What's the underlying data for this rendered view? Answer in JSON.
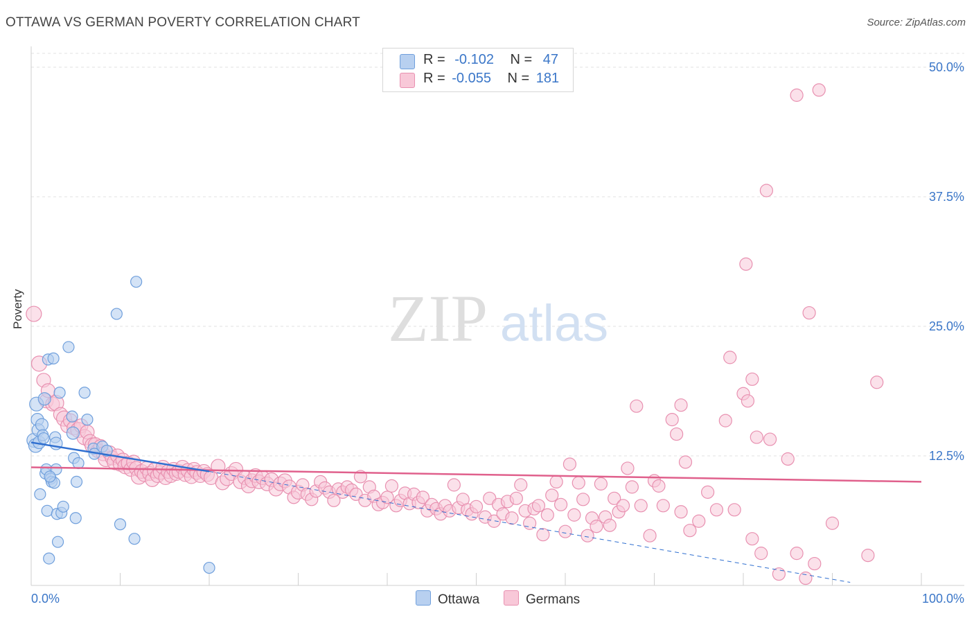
{
  "title": "OTTAWA VS GERMAN POVERTY CORRELATION CHART",
  "source": "Source: ZipAtlas.com",
  "watermark": {
    "zip": "ZIP",
    "atlas": "atlas"
  },
  "legend": {
    "ottawa": {
      "r_label": "R =",
      "r_value": "-0.102",
      "n_label": "N =",
      "n_value": "47"
    },
    "germans": {
      "r_label": "R =",
      "r_value": "-0.055",
      "n_label": "N =",
      "n_value": "181"
    }
  },
  "bottom_legend": {
    "ottawa": "Ottawa",
    "germans": "Germans"
  },
  "colors": {
    "ottawa_fill": "#b8d0f0",
    "ottawa_stroke": "#6f9fdc",
    "ottawa_line": "#2f6fd0",
    "germans_fill": "#f8c8d8",
    "germans_stroke": "#e890b0",
    "germans_line": "#e0608c",
    "axis_label": "#3a76c8",
    "grid": "#e2e2e2"
  },
  "chart_data": {
    "type": "scatter",
    "title": "OTTAWA VS GERMAN POVERTY CORRELATION CHART",
    "xlabel": "",
    "ylabel": "Poverty",
    "xlim": [
      0,
      100
    ],
    "ylim": [
      0,
      52
    ],
    "x_tick_labels": [
      "0.0%",
      "100.0%"
    ],
    "y_ticks": [
      12.5,
      25.0,
      37.5,
      50.0
    ],
    "y_tick_labels": [
      "12.5%",
      "25.0%",
      "37.5%",
      "50.0%"
    ],
    "series": [
      {
        "name": "Ottawa",
        "trend": {
          "x": [
            0,
            20
          ],
          "y": [
            13.8,
            11.0
          ]
        },
        "trend_dashed": {
          "x": [
            20,
            92
          ],
          "y": [
            11.0,
            0.3
          ]
        },
        "points": [
          [
            0.3,
            14.0,
            10
          ],
          [
            0.5,
            13.5,
            10
          ],
          [
            0.6,
            17.5,
            10
          ],
          [
            0.7,
            16.0,
            9
          ],
          [
            0.8,
            15.0,
            9
          ],
          [
            0.9,
            13.8,
            9
          ],
          [
            1.0,
            8.8,
            8
          ],
          [
            1.2,
            15.5,
            9
          ],
          [
            1.3,
            14.5,
            8
          ],
          [
            1.5,
            18.0,
            9
          ],
          [
            1.6,
            10.8,
            8
          ],
          [
            1.7,
            11.2,
            8
          ],
          [
            1.8,
            7.2,
            8
          ],
          [
            1.9,
            21.8,
            8
          ],
          [
            2.0,
            2.6,
            8
          ],
          [
            2.2,
            10.3,
            8
          ],
          [
            2.3,
            10.0,
            8
          ],
          [
            2.5,
            21.9,
            8
          ],
          [
            2.6,
            9.9,
            8
          ],
          [
            2.7,
            14.3,
            8
          ],
          [
            2.8,
            13.7,
            9
          ],
          [
            2.8,
            11.2,
            8
          ],
          [
            2.9,
            6.9,
            8
          ],
          [
            3.0,
            4.2,
            8
          ],
          [
            3.2,
            18.6,
            8
          ],
          [
            3.4,
            7.0,
            8
          ],
          [
            3.6,
            7.6,
            8
          ],
          [
            4.2,
            23.0,
            8
          ],
          [
            4.6,
            16.3,
            8
          ],
          [
            4.7,
            14.7,
            9
          ],
          [
            4.8,
            12.3,
            8
          ],
          [
            5.0,
            6.5,
            8
          ],
          [
            5.1,
            10.0,
            8
          ],
          [
            5.3,
            11.8,
            8
          ],
          [
            6.0,
            18.6,
            8
          ],
          [
            6.3,
            16.0,
            8
          ],
          [
            7.0,
            13.2,
            8
          ],
          [
            7.1,
            12.7,
            8
          ],
          [
            8.0,
            13.4,
            8
          ],
          [
            8.5,
            13.0,
            8
          ],
          [
            9.6,
            26.2,
            8
          ],
          [
            10.0,
            5.9,
            8
          ],
          [
            11.6,
            4.5,
            8
          ],
          [
            11.8,
            29.3,
            8
          ],
          [
            20.0,
            1.7,
            8
          ],
          [
            1.4,
            14.2,
            8
          ],
          [
            2.1,
            10.5,
            8
          ]
        ]
      },
      {
        "name": "Germans",
        "trend": {
          "x": [
            0,
            100
          ],
          "y": [
            11.4,
            10.0
          ]
        },
        "points": [
          [
            0.3,
            26.2,
            11
          ],
          [
            0.9,
            21.4,
            11
          ],
          [
            1.4,
            19.8,
            10
          ],
          [
            1.7,
            17.8,
            10
          ],
          [
            1.9,
            18.8,
            10
          ],
          [
            2.4,
            17.5,
            10
          ],
          [
            2.8,
            17.6,
            11
          ],
          [
            3.3,
            16.5,
            10
          ],
          [
            3.7,
            16.1,
            11
          ],
          [
            4.1,
            15.4,
            10
          ],
          [
            4.4,
            15.9,
            10
          ],
          [
            4.8,
            15.2,
            10
          ],
          [
            5.3,
            15.0,
            11
          ],
          [
            5.6,
            15.4,
            10
          ],
          [
            6.0,
            14.3,
            11
          ],
          [
            6.3,
            14.8,
            10
          ],
          [
            6.6,
            13.9,
            10
          ],
          [
            6.9,
            13.5,
            11
          ],
          [
            7.2,
            13.6,
            10
          ],
          [
            7.5,
            13.0,
            10
          ],
          [
            7.8,
            13.4,
            10
          ],
          [
            8.1,
            12.7,
            10
          ],
          [
            8.4,
            12.2,
            11
          ],
          [
            8.8,
            12.8,
            10
          ],
          [
            9.1,
            12.3,
            10
          ],
          [
            9.4,
            11.9,
            11
          ],
          [
            9.7,
            12.5,
            10
          ],
          [
            10.0,
            11.7,
            10
          ],
          [
            10.3,
            12.1,
            10
          ],
          [
            10.6,
            11.5,
            11
          ],
          [
            10.9,
            11.8,
            10
          ],
          [
            11.2,
            11.2,
            10
          ],
          [
            11.5,
            11.9,
            10
          ],
          [
            11.8,
            11.3,
            10
          ],
          [
            12.1,
            10.5,
            11
          ],
          [
            12.4,
            11.0,
            10
          ],
          [
            12.7,
            10.7,
            10
          ],
          [
            13.0,
            11.3,
            10
          ],
          [
            13.3,
            10.8,
            10
          ],
          [
            13.6,
            10.2,
            10
          ],
          [
            13.9,
            11.1,
            11
          ],
          [
            14.2,
            10.6,
            10
          ],
          [
            14.5,
            10.9,
            10
          ],
          [
            14.8,
            11.4,
            10
          ],
          [
            15.1,
            10.4,
            10
          ],
          [
            15.4,
            11.0,
            10
          ],
          [
            15.7,
            10.6,
            10
          ],
          [
            16.0,
            11.2,
            10
          ],
          [
            16.3,
            10.8,
            10
          ],
          [
            16.6,
            11.0,
            10
          ],
          [
            17.0,
            11.4,
            10
          ],
          [
            17.3,
            10.7,
            10
          ],
          [
            17.6,
            11.1,
            10
          ],
          [
            18.0,
            10.5,
            10
          ],
          [
            18.3,
            11.2,
            10
          ],
          [
            18.6,
            10.9,
            10
          ],
          [
            19.0,
            10.6,
            10
          ],
          [
            19.4,
            11.0,
            10
          ],
          [
            19.8,
            10.7,
            10
          ],
          [
            20.2,
            10.4,
            10
          ],
          [
            21.0,
            11.5,
            10
          ],
          [
            21.5,
            9.9,
            10
          ],
          [
            22.0,
            10.3,
            10
          ],
          [
            22.5,
            10.8,
            10
          ],
          [
            23.0,
            11.2,
            10
          ],
          [
            23.5,
            10.0,
            10
          ],
          [
            24.0,
            10.4,
            10
          ],
          [
            24.4,
            9.6,
            10
          ],
          [
            24.8,
            10.1,
            10
          ],
          [
            25.2,
            10.6,
            10
          ],
          [
            25.6,
            10.0,
            10
          ],
          [
            26.0,
            10.4,
            10
          ],
          [
            26.5,
            9.8,
            10
          ],
          [
            27.0,
            10.2,
            10
          ],
          [
            27.5,
            9.3,
            10
          ],
          [
            28.0,
            9.8,
            10
          ],
          [
            28.5,
            10.1,
            10
          ],
          [
            29.0,
            9.5,
            10
          ],
          [
            29.5,
            8.5,
            9
          ],
          [
            30.0,
            9.0,
            10
          ],
          [
            30.5,
            9.7,
            9
          ],
          [
            31.0,
            8.8,
            9
          ],
          [
            31.5,
            8.3,
            9
          ],
          [
            32.0,
            9.1,
            9
          ],
          [
            32.5,
            10.0,
            9
          ],
          [
            33.0,
            9.4,
            9
          ],
          [
            33.5,
            9.0,
            9
          ],
          [
            34.0,
            8.2,
            9
          ],
          [
            34.5,
            9.3,
            9
          ],
          [
            35.0,
            9.0,
            9
          ],
          [
            35.5,
            9.5,
            9
          ],
          [
            36.0,
            9.2,
            9
          ],
          [
            36.5,
            8.8,
            9
          ],
          [
            37.0,
            10.5,
            9
          ],
          [
            37.5,
            8.2,
            9
          ],
          [
            38.0,
            9.5,
            9
          ],
          [
            38.5,
            8.6,
            9
          ],
          [
            39.0,
            7.8,
            9
          ],
          [
            39.5,
            8.0,
            9
          ],
          [
            40.0,
            8.5,
            9
          ],
          [
            40.5,
            9.6,
            9
          ],
          [
            41.0,
            7.7,
            9
          ],
          [
            41.5,
            8.2,
            9
          ],
          [
            42.0,
            8.9,
            9
          ],
          [
            42.5,
            7.9,
            9
          ],
          [
            43.0,
            8.8,
            9
          ],
          [
            43.5,
            8.0,
            9
          ],
          [
            44.0,
            8.5,
            9
          ],
          [
            44.5,
            7.2,
            9
          ],
          [
            45.0,
            7.8,
            9
          ],
          [
            45.5,
            7.4,
            9
          ],
          [
            46.0,
            6.9,
            9
          ],
          [
            46.5,
            7.7,
            9
          ],
          [
            47.0,
            7.2,
            9
          ],
          [
            47.5,
            9.7,
            9
          ],
          [
            48.0,
            7.5,
            9
          ],
          [
            48.5,
            8.3,
            9
          ],
          [
            49.0,
            7.3,
            9
          ],
          [
            49.5,
            6.9,
            9
          ],
          [
            50.0,
            7.6,
            9
          ],
          [
            51.0,
            6.6,
            9
          ],
          [
            51.5,
            8.4,
            9
          ],
          [
            52.0,
            6.2,
            9
          ],
          [
            52.5,
            7.8,
            9
          ],
          [
            53.0,
            6.9,
            9
          ],
          [
            53.5,
            8.1,
            9
          ],
          [
            54.0,
            6.5,
            9
          ],
          [
            54.5,
            8.4,
            9
          ],
          [
            55.0,
            9.7,
            9
          ],
          [
            55.5,
            7.2,
            9
          ],
          [
            56.0,
            6.0,
            9
          ],
          [
            56.5,
            7.4,
            9
          ],
          [
            57.0,
            7.7,
            9
          ],
          [
            57.5,
            4.9,
            9
          ],
          [
            58.0,
            6.8,
            9
          ],
          [
            58.5,
            8.7,
            9
          ],
          [
            59.0,
            10.0,
            9
          ],
          [
            59.5,
            7.8,
            9
          ],
          [
            60.0,
            5.2,
            9
          ],
          [
            60.5,
            11.7,
            9
          ],
          [
            61.0,
            6.8,
            9
          ],
          [
            61.5,
            9.9,
            9
          ],
          [
            62.0,
            8.3,
            9
          ],
          [
            62.5,
            4.8,
            9
          ],
          [
            63.0,
            6.5,
            9
          ],
          [
            63.5,
            5.7,
            9
          ],
          [
            64.0,
            9.8,
            9
          ],
          [
            64.5,
            6.6,
            9
          ],
          [
            65.0,
            5.8,
            9
          ],
          [
            65.5,
            8.4,
            9
          ],
          [
            66.0,
            7.1,
            9
          ],
          [
            66.5,
            7.7,
            9
          ],
          [
            67.0,
            11.3,
            9
          ],
          [
            67.5,
            9.5,
            9
          ],
          [
            68.0,
            17.3,
            9
          ],
          [
            68.5,
            7.7,
            9
          ],
          [
            69.5,
            4.8,
            9
          ],
          [
            70.0,
            10.1,
            9
          ],
          [
            70.5,
            9.6,
            9
          ],
          [
            71.0,
            7.7,
            9
          ],
          [
            72.0,
            16.0,
            9
          ],
          [
            72.5,
            14.6,
            9
          ],
          [
            73.0,
            7.1,
            9
          ],
          [
            73.5,
            11.9,
            9
          ],
          [
            74.0,
            5.3,
            9
          ],
          [
            75.0,
            6.2,
            9
          ],
          [
            76.0,
            9.0,
            9
          ],
          [
            77.0,
            7.3,
            9
          ],
          [
            78.0,
            15.9,
            9
          ],
          [
            79.0,
            7.3,
            9
          ],
          [
            80.0,
            18.5,
            9
          ],
          [
            80.5,
            17.8,
            9
          ],
          [
            81.0,
            4.5,
            9
          ],
          [
            81.5,
            14.3,
            9
          ],
          [
            82.0,
            3.1,
            9
          ],
          [
            83.0,
            14.1,
            9
          ],
          [
            84.0,
            1.1,
            9
          ],
          [
            85.0,
            12.2,
            9
          ],
          [
            86.0,
            3.1,
            9
          ],
          [
            87.0,
            0.7,
            9
          ],
          [
            88.0,
            2.1,
            9
          ],
          [
            90.0,
            6.0,
            9
          ],
          [
            94.0,
            2.9,
            9
          ],
          [
            78.5,
            22.0,
            9
          ],
          [
            73.0,
            17.4,
            9
          ],
          [
            81.0,
            19.9,
            9
          ],
          [
            80.3,
            31.0,
            9
          ],
          [
            82.6,
            38.1,
            9
          ],
          [
            86.0,
            47.3,
            9
          ],
          [
            88.5,
            47.8,
            9
          ],
          [
            87.4,
            26.3,
            9
          ],
          [
            95.0,
            19.6,
            9
          ]
        ]
      }
    ]
  }
}
